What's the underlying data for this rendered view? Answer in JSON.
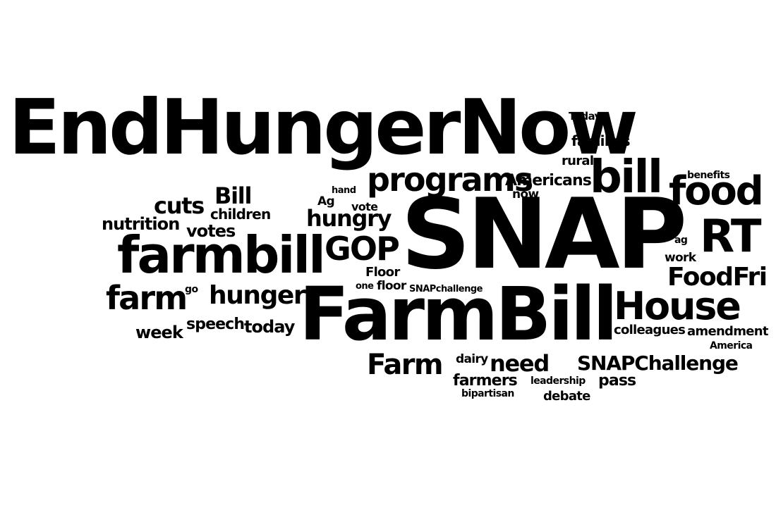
{
  "colors": {
    "background": "#ffffff",
    "word": "#000000"
  },
  "words": [
    "EndHungerNow",
    "SNAP",
    "FarmBill",
    "farmbill",
    "bill",
    "food",
    "RT",
    "House",
    "programs",
    "GOP",
    "FoodFri",
    "farm",
    "hunger",
    "Farm",
    "cuts",
    "Bill",
    "hungry",
    "need",
    "SNAPChallenge",
    "nutrition",
    "votes",
    "Americans",
    "families",
    "today",
    "week",
    "speech",
    "children",
    "farmers",
    "pass",
    "debate",
    "amendment",
    "colleagues",
    "rural",
    "now",
    "Today",
    "benefits",
    "Floor",
    "floor",
    "vote",
    "Ag",
    "hand",
    "work",
    "ag",
    "dairy",
    "leadership",
    "bipartisan",
    "America",
    "SNAPchallenge",
    "one",
    "go"
  ]
}
